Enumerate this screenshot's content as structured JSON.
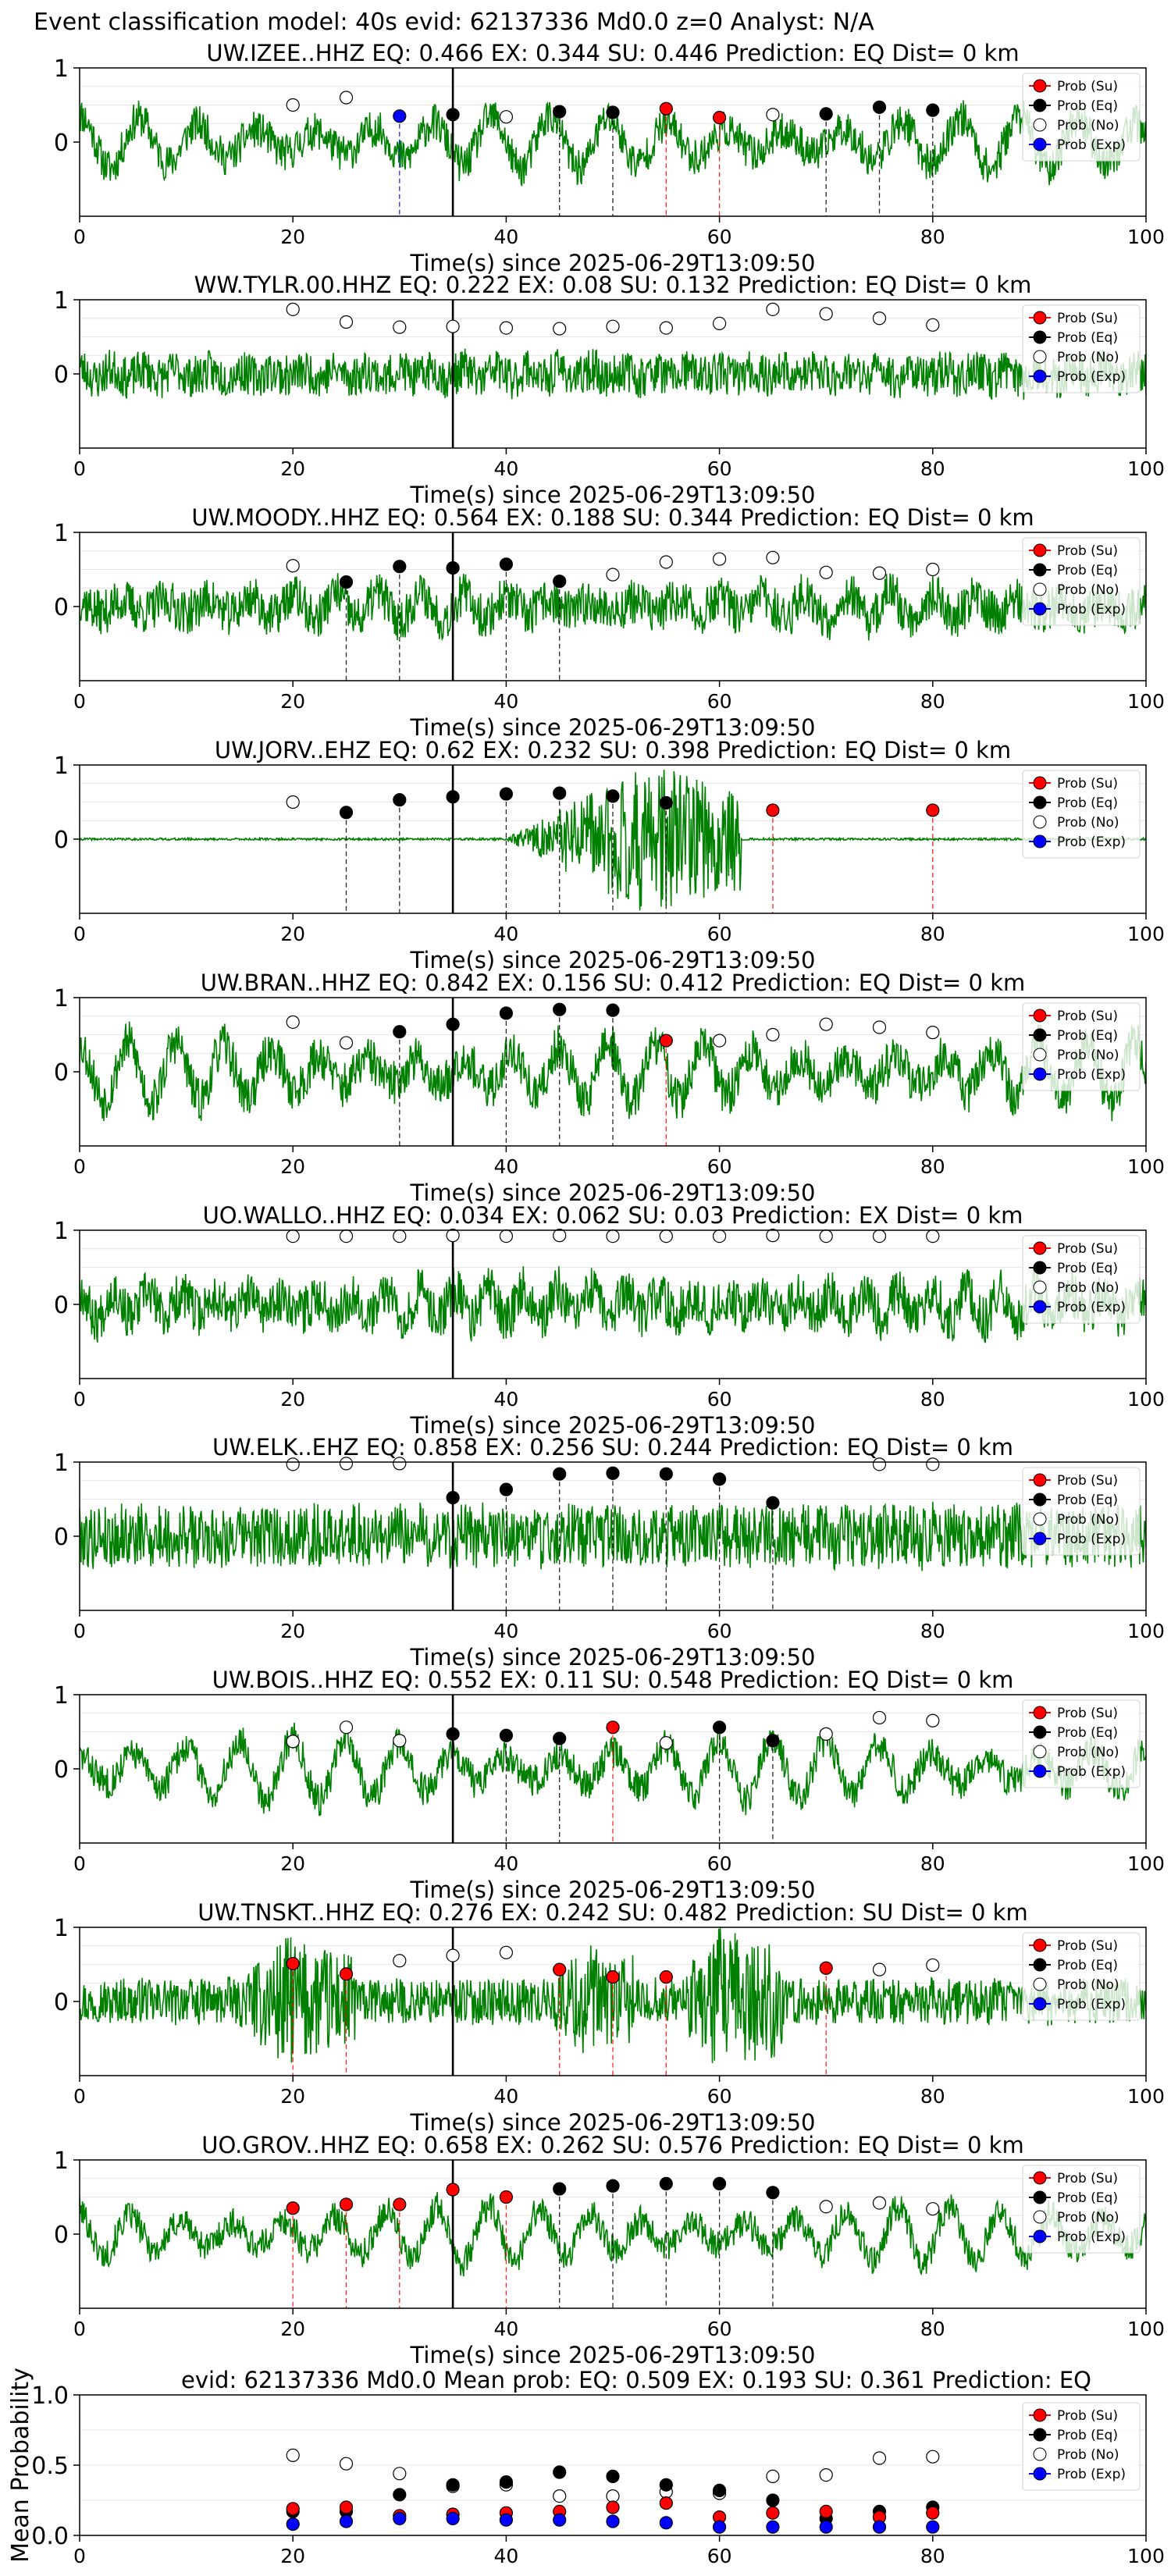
{
  "figure": {
    "suptitle": "Event classification model: 40s evid: 62137336 Md0.0 z=0 Analyst: N/A",
    "xlabel": "Time(s) since 2025-06-29T13:09:50",
    "summary_ylabel": "Mean Probability",
    "legend_labels": [
      "Prob (Su)",
      "Prob (Eq)",
      "Prob (No)",
      "Prob (Exp)"
    ],
    "legend_colors": [
      "#ff0000",
      "#000000",
      "#ffffff",
      "#0000ff"
    ],
    "trace_color": "#008000",
    "pick_line_color": "#000000"
  },
  "chart_data": [
    {
      "type": "scatter",
      "title": "UW.IZEE..HHZ   EQ: 0.466  EX: 0.344  SU: 0.446   Prediction: EQ    Dist= 0 km",
      "xlim": [
        0,
        100
      ],
      "ylim": [
        -1,
        1
      ],
      "yticks": [
        0,
        1
      ],
      "xticks": [
        0,
        20,
        40,
        60,
        80,
        100
      ],
      "pick_time": 35,
      "trace": {
        "amp": 0.36,
        "noise": 0.25,
        "period": 5.5,
        "seed": 11,
        "bursts": []
      },
      "points": [
        {
          "t": 20,
          "p": 0.5,
          "cls": "no"
        },
        {
          "t": 25,
          "p": 0.6,
          "cls": "no"
        },
        {
          "t": 30,
          "p": 0.35,
          "cls": "exp"
        },
        {
          "t": 35,
          "p": 0.37,
          "cls": "eq"
        },
        {
          "t": 40,
          "p": 0.34,
          "cls": "no"
        },
        {
          "t": 45,
          "p": 0.41,
          "cls": "eq"
        },
        {
          "t": 50,
          "p": 0.4,
          "cls": "eq"
        },
        {
          "t": 55,
          "p": 0.45,
          "cls": "su"
        },
        {
          "t": 60,
          "p": 0.33,
          "cls": "su"
        },
        {
          "t": 65,
          "p": 0.37,
          "cls": "no"
        },
        {
          "t": 70,
          "p": 0.38,
          "cls": "eq"
        },
        {
          "t": 75,
          "p": 0.47,
          "cls": "eq"
        },
        {
          "t": 80,
          "p": 0.43,
          "cls": "eq"
        }
      ]
    },
    {
      "type": "scatter",
      "title": "WW.TYLR.00.HHZ   EQ: 0.222  EX: 0.08  SU: 0.132   Prediction: EQ    Dist= 0 km",
      "xlim": [
        0,
        100
      ],
      "ylim": [
        -1,
        1
      ],
      "yticks": [
        0,
        1
      ],
      "xticks": [
        0,
        20,
        40,
        60,
        80,
        100
      ],
      "pick_time": 35,
      "trace": {
        "amp": 0.08,
        "noise": 0.28,
        "period": 3,
        "seed": 23,
        "bursts": []
      },
      "points": [
        {
          "t": 20,
          "p": 0.87,
          "cls": "no"
        },
        {
          "t": 25,
          "p": 0.7,
          "cls": "no"
        },
        {
          "t": 30,
          "p": 0.63,
          "cls": "no"
        },
        {
          "t": 35,
          "p": 0.64,
          "cls": "no"
        },
        {
          "t": 40,
          "p": 0.62,
          "cls": "no"
        },
        {
          "t": 45,
          "p": 0.61,
          "cls": "no"
        },
        {
          "t": 50,
          "p": 0.64,
          "cls": "no"
        },
        {
          "t": 55,
          "p": 0.62,
          "cls": "no"
        },
        {
          "t": 60,
          "p": 0.68,
          "cls": "no"
        },
        {
          "t": 65,
          "p": 0.87,
          "cls": "no"
        },
        {
          "t": 70,
          "p": 0.81,
          "cls": "no"
        },
        {
          "t": 75,
          "p": 0.75,
          "cls": "no"
        },
        {
          "t": 80,
          "p": 0.66,
          "cls": "no"
        }
      ]
    },
    {
      "type": "scatter",
      "title": "UW.MOODY..HHZ   EQ: 0.564  EX: 0.188  SU: 0.344   Prediction: EQ    Dist= 0 km",
      "xlim": [
        0,
        100
      ],
      "ylim": [
        -1,
        1
      ],
      "yticks": [
        0,
        1
      ],
      "xticks": [
        0,
        20,
        40,
        60,
        80,
        100
      ],
      "pick_time": 35,
      "trace": {
        "amp": 0.18,
        "noise": 0.3,
        "period": 4,
        "seed": 37,
        "bursts": []
      },
      "points": [
        {
          "t": 20,
          "p": 0.55,
          "cls": "no"
        },
        {
          "t": 25,
          "p": 0.33,
          "cls": "eq"
        },
        {
          "t": 30,
          "p": 0.54,
          "cls": "eq"
        },
        {
          "t": 35,
          "p": 0.52,
          "cls": "eq"
        },
        {
          "t": 40,
          "p": 0.57,
          "cls": "eq"
        },
        {
          "t": 45,
          "p": 0.34,
          "cls": "eq"
        },
        {
          "t": 50,
          "p": 0.43,
          "cls": "no"
        },
        {
          "t": 55,
          "p": 0.6,
          "cls": "no"
        },
        {
          "t": 60,
          "p": 0.64,
          "cls": "no"
        },
        {
          "t": 65,
          "p": 0.66,
          "cls": "no"
        },
        {
          "t": 70,
          "p": 0.46,
          "cls": "no"
        },
        {
          "t": 75,
          "p": 0.45,
          "cls": "no"
        },
        {
          "t": 80,
          "p": 0.5,
          "cls": "no"
        }
      ]
    },
    {
      "type": "scatter",
      "title": "UW.JORV..EHZ   EQ: 0.62  EX: 0.232  SU: 0.398   Prediction: EQ    Dist= 0 km",
      "xlim": [
        0,
        100
      ],
      "ylim": [
        -1,
        1
      ],
      "yticks": [
        0,
        1
      ],
      "xticks": [
        0,
        20,
        40,
        60,
        80,
        100
      ],
      "pick_time": 35,
      "trace": {
        "amp": 0,
        "noise": 0.015,
        "period": 2,
        "seed": 41,
        "bursts": [
          {
            "t0": 40,
            "t1": 62,
            "peak": 53,
            "amp": 1
          }
        ]
      },
      "points": [
        {
          "t": 20,
          "p": 0.5,
          "cls": "no"
        },
        {
          "t": 25,
          "p": 0.36,
          "cls": "eq"
        },
        {
          "t": 30,
          "p": 0.53,
          "cls": "eq"
        },
        {
          "t": 35,
          "p": 0.57,
          "cls": "eq"
        },
        {
          "t": 40,
          "p": 0.61,
          "cls": "eq"
        },
        {
          "t": 45,
          "p": 0.62,
          "cls": "eq"
        },
        {
          "t": 50,
          "p": 0.58,
          "cls": "eq"
        },
        {
          "t": 55,
          "p": 0.49,
          "cls": "eq"
        },
        {
          "t": 65,
          "p": 0.39,
          "cls": "su"
        },
        {
          "t": 80,
          "p": 0.39,
          "cls": "su"
        }
      ]
    },
    {
      "type": "scatter",
      "title": "UW.BRAN..HHZ   EQ: 0.842  EX: 0.156  SU: 0.412   Prediction: EQ    Dist= 0 km",
      "xlim": [
        0,
        100
      ],
      "ylim": [
        -1,
        1
      ],
      "yticks": [
        0,
        1
      ],
      "xticks": [
        0,
        20,
        40,
        60,
        80,
        100
      ],
      "pick_time": 35,
      "trace": {
        "amp": 0.4,
        "noise": 0.3,
        "period": 4.5,
        "seed": 53,
        "bursts": []
      },
      "points": [
        {
          "t": 20,
          "p": 0.67,
          "cls": "no"
        },
        {
          "t": 25,
          "p": 0.39,
          "cls": "no"
        },
        {
          "t": 30,
          "p": 0.54,
          "cls": "eq"
        },
        {
          "t": 35,
          "p": 0.64,
          "cls": "eq"
        },
        {
          "t": 40,
          "p": 0.79,
          "cls": "eq"
        },
        {
          "t": 45,
          "p": 0.84,
          "cls": "eq"
        },
        {
          "t": 50,
          "p": 0.83,
          "cls": "eq"
        },
        {
          "t": 55,
          "p": 0.42,
          "cls": "su"
        },
        {
          "t": 60,
          "p": 0.42,
          "cls": "no"
        },
        {
          "t": 65,
          "p": 0.5,
          "cls": "no"
        },
        {
          "t": 70,
          "p": 0.64,
          "cls": "no"
        },
        {
          "t": 75,
          "p": 0.6,
          "cls": "no"
        },
        {
          "t": 80,
          "p": 0.53,
          "cls": "no"
        }
      ]
    },
    {
      "type": "scatter",
      "title": "UO.WALLO..HHZ   EQ: 0.034  EX: 0.062  SU: 0.03   Prediction: EX    Dist= 0 km",
      "xlim": [
        0,
        100
      ],
      "ylim": [
        -1,
        1
      ],
      "yticks": [
        0,
        1
      ],
      "xticks": [
        0,
        20,
        40,
        60,
        80,
        100
      ],
      "pick_time": 35,
      "trace": {
        "amp": 0.22,
        "noise": 0.32,
        "period": 3.2,
        "seed": 67,
        "bursts": []
      },
      "points": [
        {
          "t": 20,
          "p": 0.92,
          "cls": "no"
        },
        {
          "t": 25,
          "p": 0.92,
          "cls": "no"
        },
        {
          "t": 30,
          "p": 0.92,
          "cls": "no"
        },
        {
          "t": 35,
          "p": 0.93,
          "cls": "no"
        },
        {
          "t": 40,
          "p": 0.92,
          "cls": "no"
        },
        {
          "t": 45,
          "p": 0.93,
          "cls": "no"
        },
        {
          "t": 50,
          "p": 0.92,
          "cls": "no"
        },
        {
          "t": 55,
          "p": 0.92,
          "cls": "no"
        },
        {
          "t": 60,
          "p": 0.92,
          "cls": "no"
        },
        {
          "t": 65,
          "p": 0.93,
          "cls": "no"
        },
        {
          "t": 70,
          "p": 0.92,
          "cls": "no"
        },
        {
          "t": 75,
          "p": 0.92,
          "cls": "no"
        },
        {
          "t": 80,
          "p": 0.92,
          "cls": "no"
        }
      ]
    },
    {
      "type": "scatter",
      "title": "UW.ELK..EHZ   EQ: 0.858  EX: 0.256  SU: 0.244   Prediction: EQ    Dist= 0 km",
      "xlim": [
        0,
        100
      ],
      "ylim": [
        -1,
        1
      ],
      "yticks": [
        0,
        1
      ],
      "xticks": [
        0,
        20,
        40,
        60,
        80,
        100
      ],
      "pick_time": 35,
      "trace": {
        "amp": 0.05,
        "noise": 0.42,
        "period": 2,
        "seed": 79,
        "bursts": []
      },
      "points": [
        {
          "t": 20,
          "p": 0.97,
          "cls": "no"
        },
        {
          "t": 25,
          "p": 0.98,
          "cls": "no"
        },
        {
          "t": 30,
          "p": 0.98,
          "cls": "no"
        },
        {
          "t": 35,
          "p": 0.52,
          "cls": "eq"
        },
        {
          "t": 40,
          "p": 0.63,
          "cls": "eq"
        },
        {
          "t": 45,
          "p": 0.84,
          "cls": "eq"
        },
        {
          "t": 50,
          "p": 0.85,
          "cls": "eq"
        },
        {
          "t": 55,
          "p": 0.84,
          "cls": "eq"
        },
        {
          "t": 60,
          "p": 0.77,
          "cls": "eq"
        },
        {
          "t": 65,
          "p": 0.45,
          "cls": "eq"
        },
        {
          "t": 75,
          "p": 0.97,
          "cls": "no"
        },
        {
          "t": 80,
          "p": 0.97,
          "cls": "no"
        }
      ]
    },
    {
      "type": "scatter",
      "title": "UW.BOIS..HHZ   EQ: 0.552  EX: 0.11  SU: 0.548   Prediction: EQ    Dist= 0 km",
      "xlim": [
        0,
        100
      ],
      "ylim": [
        -1,
        1
      ],
      "yticks": [
        0,
        1
      ],
      "xticks": [
        0,
        20,
        40,
        60,
        80,
        100
      ],
      "pick_time": 35,
      "trace": {
        "amp": 0.42,
        "noise": 0.22,
        "period": 5,
        "seed": 83,
        "bursts": []
      },
      "points": [
        {
          "t": 20,
          "p": 0.37,
          "cls": "no"
        },
        {
          "t": 25,
          "p": 0.56,
          "cls": "no"
        },
        {
          "t": 30,
          "p": 0.38,
          "cls": "no"
        },
        {
          "t": 35,
          "p": 0.47,
          "cls": "eq"
        },
        {
          "t": 40,
          "p": 0.45,
          "cls": "eq"
        },
        {
          "t": 45,
          "p": 0.41,
          "cls": "eq"
        },
        {
          "t": 50,
          "p": 0.56,
          "cls": "su"
        },
        {
          "t": 55,
          "p": 0.35,
          "cls": "no"
        },
        {
          "t": 60,
          "p": 0.56,
          "cls": "eq"
        },
        {
          "t": 65,
          "p": 0.38,
          "cls": "eq"
        },
        {
          "t": 70,
          "p": 0.47,
          "cls": "no"
        },
        {
          "t": 75,
          "p": 0.69,
          "cls": "no"
        },
        {
          "t": 80,
          "p": 0.65,
          "cls": "no"
        }
      ]
    },
    {
      "type": "scatter",
      "title": "UW.TNSKT..HHZ   EQ: 0.276  EX: 0.242  SU: 0.482   Prediction: SU    Dist= 0 km",
      "xlim": [
        0,
        100
      ],
      "ylim": [
        -1,
        1
      ],
      "yticks": [
        0,
        1
      ],
      "xticks": [
        0,
        20,
        40,
        60,
        80,
        100
      ],
      "pick_time": 35,
      "trace": {
        "amp": 0.04,
        "noise": 0.3,
        "period": 2,
        "seed": 97,
        "bursts": [
          {
            "t0": 15,
            "t1": 26,
            "peak": 19,
            "amp": 0.6
          },
          {
            "t0": 44,
            "t1": 52,
            "peak": 47,
            "amp": 0.45
          },
          {
            "t0": 56,
            "t1": 66,
            "peak": 60,
            "amp": 0.7
          }
        ]
      },
      "points": [
        {
          "t": 20,
          "p": 0.51,
          "cls": "su"
        },
        {
          "t": 25,
          "p": 0.37,
          "cls": "su"
        },
        {
          "t": 30,
          "p": 0.55,
          "cls": "no"
        },
        {
          "t": 35,
          "p": 0.62,
          "cls": "no"
        },
        {
          "t": 40,
          "p": 0.66,
          "cls": "no"
        },
        {
          "t": 45,
          "p": 0.43,
          "cls": "su"
        },
        {
          "t": 50,
          "p": 0.33,
          "cls": "su"
        },
        {
          "t": 55,
          "p": 0.33,
          "cls": "su"
        },
        {
          "t": 70,
          "p": 0.45,
          "cls": "su"
        },
        {
          "t": 75,
          "p": 0.43,
          "cls": "no"
        },
        {
          "t": 80,
          "p": 0.49,
          "cls": "no"
        }
      ]
    },
    {
      "type": "scatter",
      "title": "UO.GROV..HHZ   EQ: 0.658  EX: 0.262  SU: 0.576   Prediction: EQ    Dist= 0 km",
      "xlim": [
        0,
        100
      ],
      "ylim": [
        -1,
        1
      ],
      "yticks": [
        0,
        1
      ],
      "xticks": [
        0,
        20,
        40,
        60,
        80,
        100
      ],
      "pick_time": 35,
      "trace": {
        "amp": 0.38,
        "noise": 0.2,
        "period": 4.8,
        "seed": 101,
        "bursts": []
      },
      "points": [
        {
          "t": 20,
          "p": 0.35,
          "cls": "su"
        },
        {
          "t": 25,
          "p": 0.4,
          "cls": "su"
        },
        {
          "t": 30,
          "p": 0.4,
          "cls": "su"
        },
        {
          "t": 35,
          "p": 0.6,
          "cls": "su"
        },
        {
          "t": 40,
          "p": 0.5,
          "cls": "su"
        },
        {
          "t": 45,
          "p": 0.61,
          "cls": "eq"
        },
        {
          "t": 50,
          "p": 0.65,
          "cls": "eq"
        },
        {
          "t": 55,
          "p": 0.68,
          "cls": "eq"
        },
        {
          "t": 60,
          "p": 0.68,
          "cls": "eq"
        },
        {
          "t": 65,
          "p": 0.56,
          "cls": "eq"
        },
        {
          "t": 70,
          "p": 0.37,
          "cls": "no"
        },
        {
          "t": 75,
          "p": 0.42,
          "cls": "no"
        },
        {
          "t": 80,
          "p": 0.34,
          "cls": "no"
        }
      ]
    },
    {
      "type": "scatter",
      "title": "evid: 62137336  Md0.0   Mean prob:   EQ: 0.509  EX: 0.193  SU: 0.361   Prediction: EQ",
      "ylabel": "Mean Probability",
      "xlim": [
        0,
        100
      ],
      "ylim": [
        0,
        1
      ],
      "yticks": [
        0,
        0.5,
        1
      ],
      "ytick_labels": [
        "0.0",
        "0.5",
        "1.0"
      ],
      "xticks": [
        0,
        20,
        40,
        60,
        80,
        100
      ],
      "x": [
        20,
        25,
        30,
        35,
        40,
        45,
        50,
        55,
        60,
        65,
        70,
        75,
        80
      ],
      "series": [
        {
          "name": "Prob (No)",
          "cls": "no",
          "values": [
            0.57,
            0.51,
            0.44,
            0.35,
            0.36,
            0.28,
            0.28,
            0.31,
            0.3,
            0.42,
            0.43,
            0.55,
            0.56
          ]
        },
        {
          "name": "Prob (Eq)",
          "cls": "eq",
          "values": [
            0.17,
            0.17,
            0.29,
            0.36,
            0.38,
            0.45,
            0.42,
            0.36,
            0.32,
            0.25,
            0.12,
            0.17,
            0.2
          ]
        },
        {
          "name": "Prob (Su)",
          "cls": "su",
          "values": [
            0.19,
            0.2,
            0.14,
            0.15,
            0.16,
            0.17,
            0.2,
            0.23,
            0.13,
            0.16,
            0.17,
            0.13,
            0.16
          ]
        },
        {
          "name": "Prob (Exp)",
          "cls": "exp",
          "values": [
            0.08,
            0.1,
            0.12,
            0.12,
            0.11,
            0.11,
            0.1,
            0.09,
            0.06,
            0.06,
            0.06,
            0.06,
            0.06
          ]
        }
      ]
    }
  ]
}
